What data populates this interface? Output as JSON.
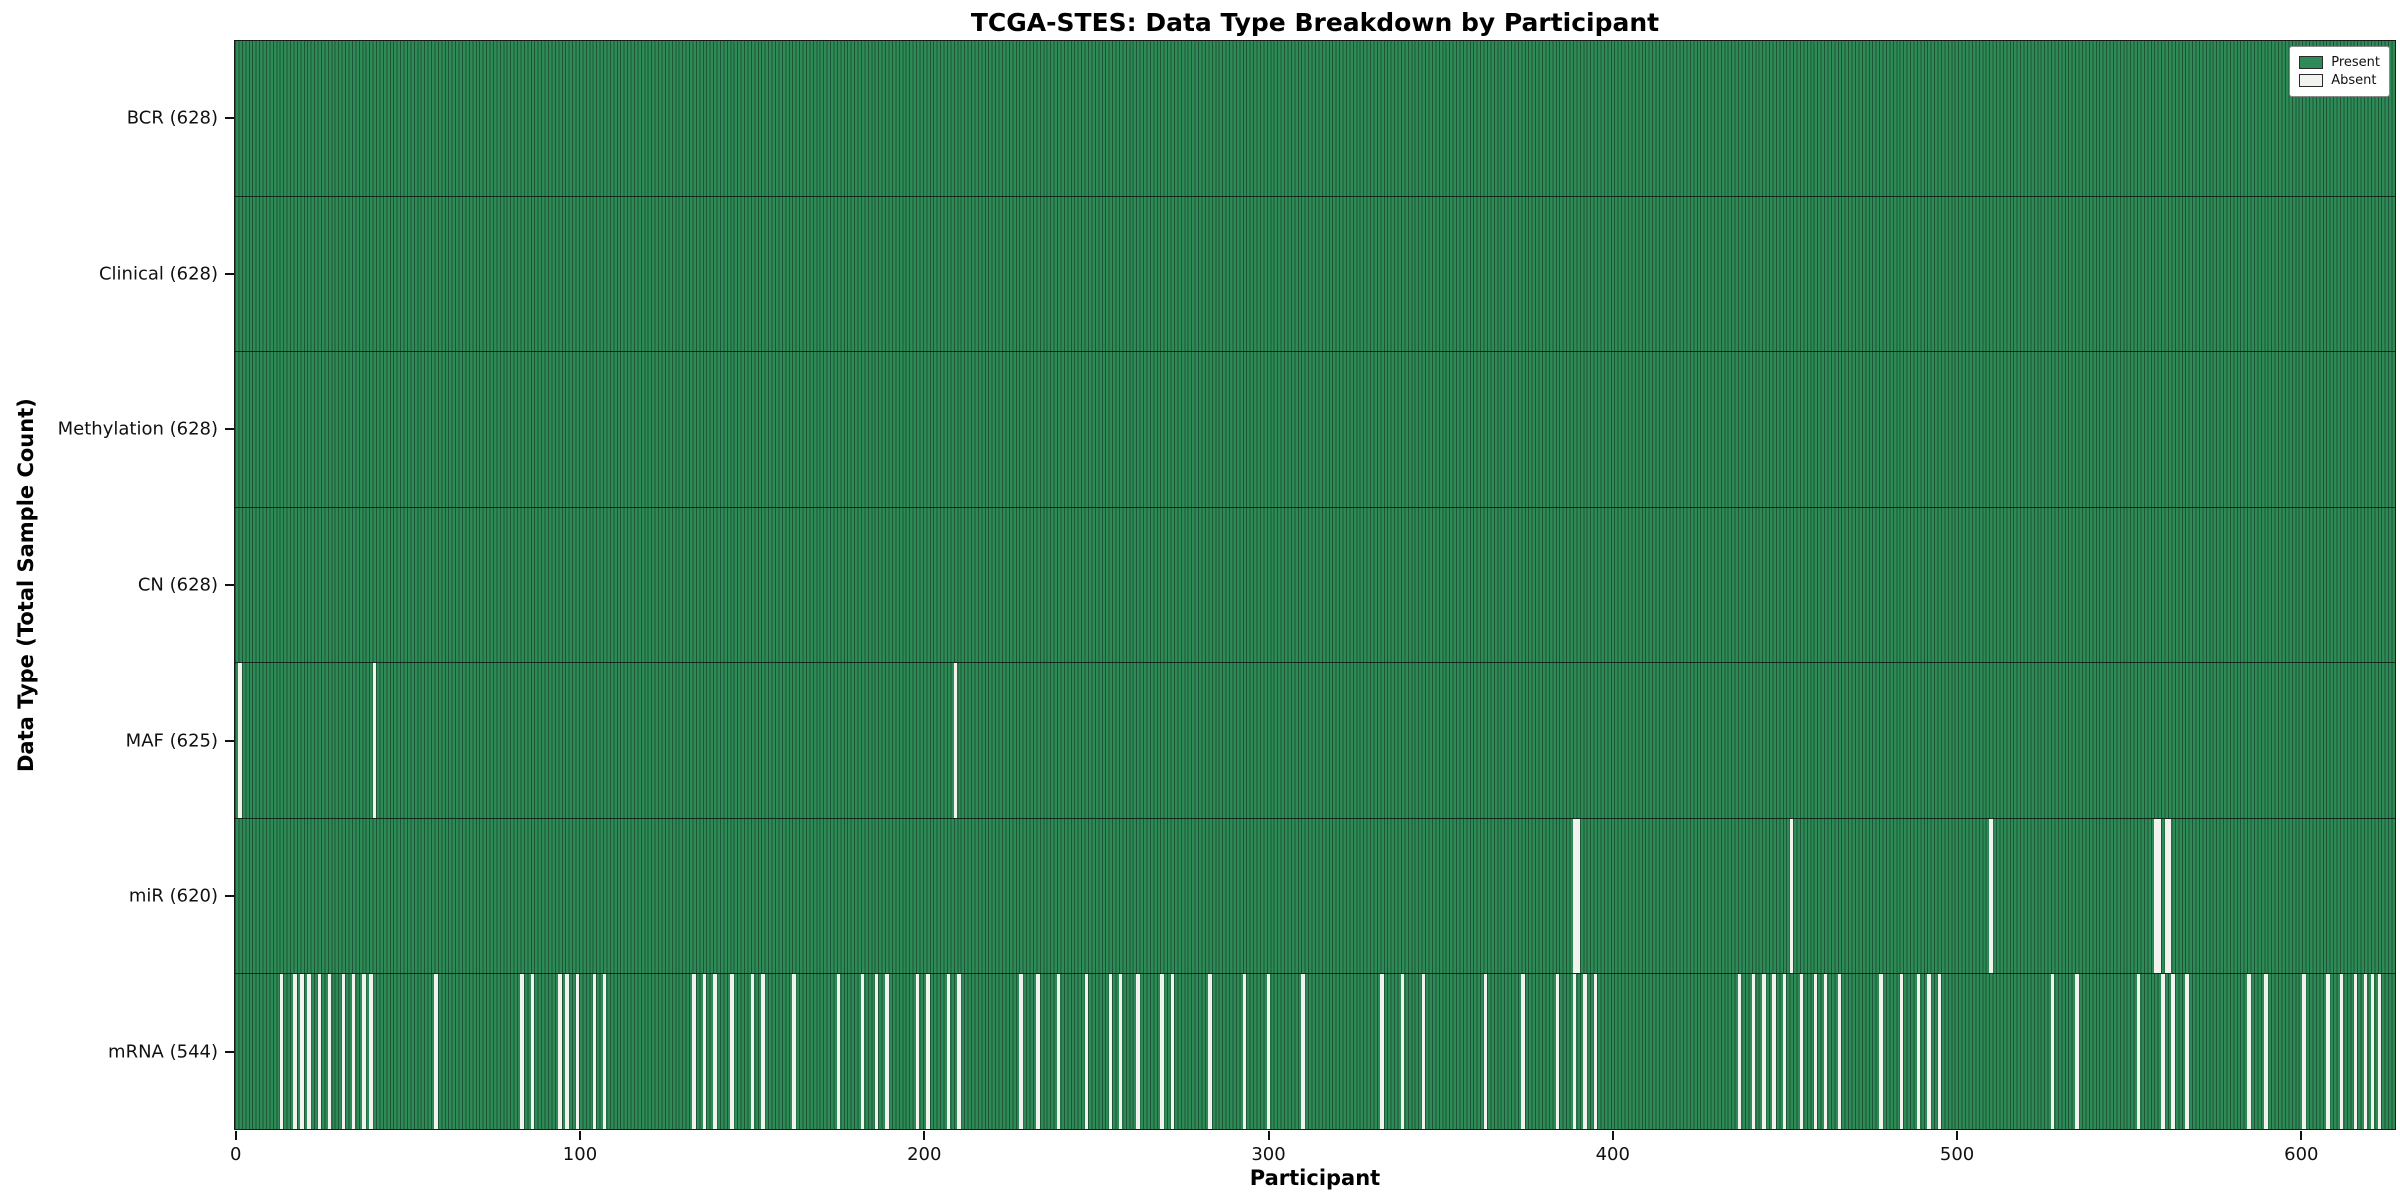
{
  "chart_data": {
    "type": "heatmap",
    "title": "TCGA-STES: Data Type Breakdown by Participant",
    "xlabel": "Participant",
    "ylabel": "Data Type (Total Sample Count)",
    "n_participants": 628,
    "x_ticks": [
      0,
      100,
      200,
      300,
      400,
      500,
      600
    ],
    "legend": {
      "present_label": "Present",
      "absent_label": "Absent"
    },
    "legend_position": "upper right",
    "colors": {
      "present": "#2e8b57",
      "absent": "#f2f2ee",
      "bar_edge": "rgba(0,0,0,0.38)",
      "row_separator": "#1a1a1a"
    },
    "rows": [
      {
        "name": "BCR",
        "label": "BCR (628)",
        "count": 628,
        "absent": []
      },
      {
        "name": "Clinical",
        "label": "Clinical (628)",
        "count": 628,
        "absent": []
      },
      {
        "name": "Methylation",
        "label": "Methylation (628)",
        "count": 628,
        "absent": []
      },
      {
        "name": "CN",
        "label": "CN (628)",
        "count": 628,
        "absent": []
      },
      {
        "name": "MAF",
        "label": "MAF (625)",
        "count": 625,
        "absent": [
          1,
          40,
          209
        ]
      },
      {
        "name": "miR",
        "label": "miR (620)",
        "count": 620,
        "absent": [
          389,
          390,
          452,
          510,
          558,
          559,
          561,
          562
        ]
      },
      {
        "name": "mRNA",
        "label": "mRNA (544)",
        "count": 544,
        "absent": [
          13,
          17,
          19,
          21,
          24,
          27,
          31,
          34,
          37,
          39,
          58,
          83,
          86,
          94,
          96,
          99,
          104,
          107,
          133,
          136,
          139,
          144,
          150,
          153,
          162,
          175,
          182,
          186,
          189,
          198,
          201,
          207,
          210,
          228,
          233,
          239,
          247,
          254,
          257,
          262,
          269,
          272,
          283,
          293,
          300,
          310,
          333,
          339,
          345,
          363,
          374,
          384,
          389,
          392,
          395,
          437,
          441,
          444,
          447,
          450,
          455,
          459,
          462,
          466,
          478,
          484,
          489,
          492,
          495,
          528,
          535,
          553,
          560,
          563,
          567,
          585,
          590,
          601,
          608,
          612,
          616,
          619,
          621,
          623
        ]
      }
    ]
  }
}
